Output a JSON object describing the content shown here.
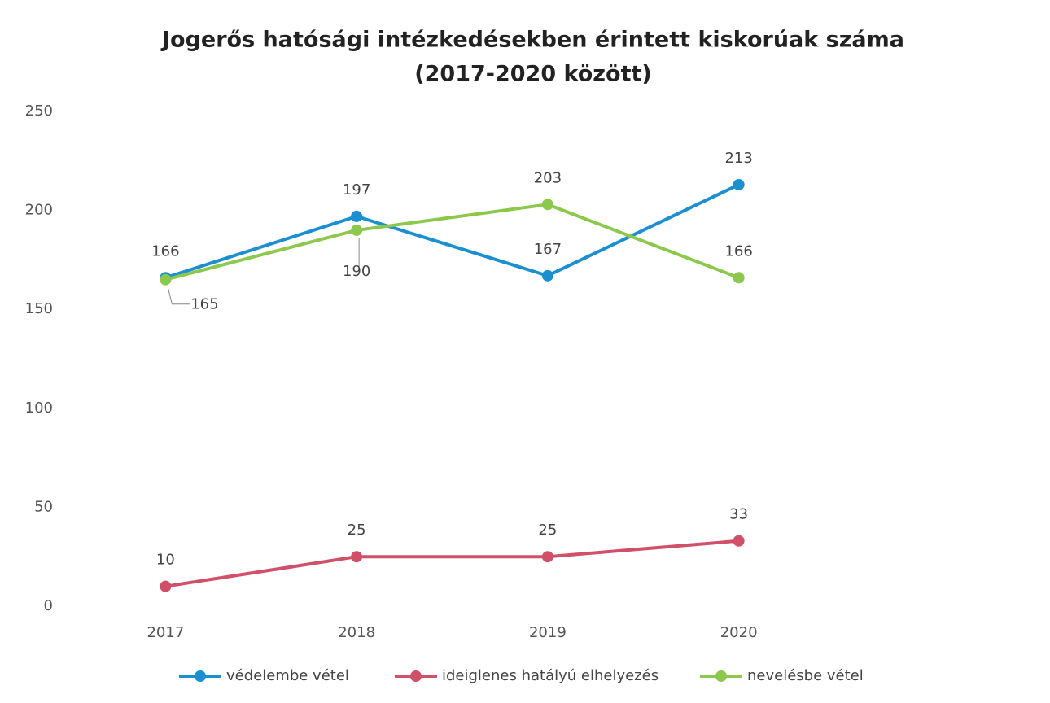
{
  "chart_data": {
    "type": "line",
    "title": [
      "Jogerős hatósági intézkedésekben érintett kiskorúak száma",
      "(2017-2020 között)"
    ],
    "categories": [
      "2017",
      "2018",
      "2019",
      "2020"
    ],
    "series": [
      {
        "name": "védelembe vétel",
        "color": "#1b8fd0",
        "values": [
          166,
          197,
          167,
          213
        ]
      },
      {
        "name": "ideiglenes hatályú elhelyezés",
        "color": "#d0506a",
        "values": [
          10,
          25,
          25,
          33
        ]
      },
      {
        "name": "nevelésbe vétel",
        "color": "#8cc84b",
        "values": [
          165,
          190,
          203,
          166
        ]
      }
    ],
    "ylim": [
      0,
      250
    ],
    "yticks": [
      0,
      50,
      100,
      150,
      200,
      250
    ],
    "grid": false,
    "legend": "bottom"
  }
}
